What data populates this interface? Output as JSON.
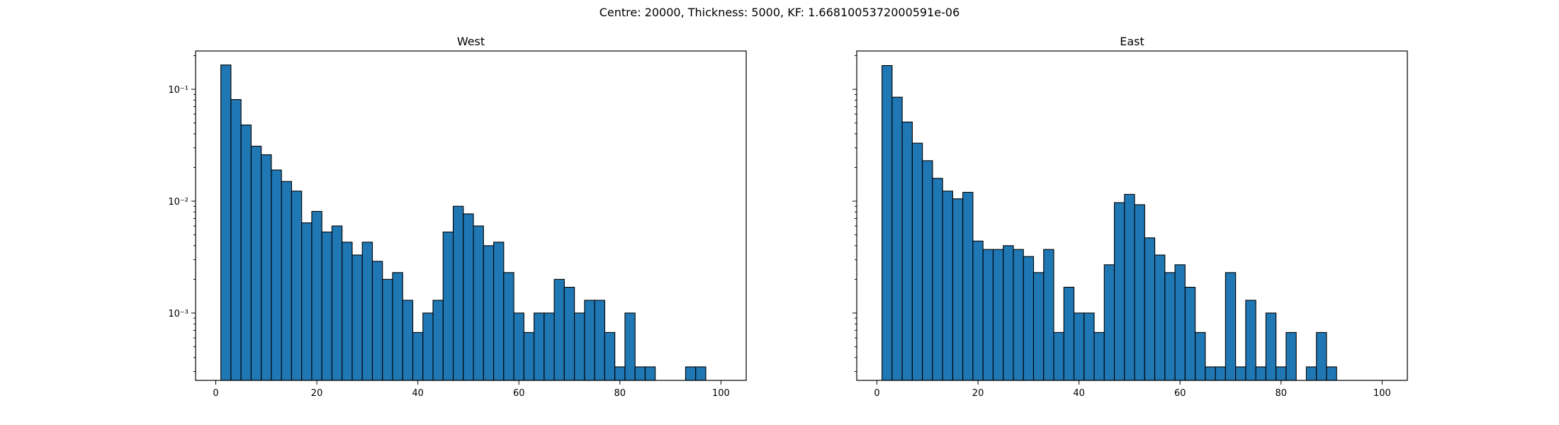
{
  "figure": {
    "suptitle": "Centre: 20000, Thickness: 5000, KF: 1.6681005372000591e-06"
  },
  "chart_data": [
    {
      "type": "bar",
      "title": "West",
      "xlabel": "",
      "ylabel": "",
      "yscale": "log",
      "bar_color": "#1f77b4",
      "edge_color": "#000000",
      "xlim": [
        -4,
        105
      ],
      "ylim": [
        0.00025,
        0.22
      ],
      "x_ticks": [
        0,
        20,
        40,
        60,
        80,
        100
      ],
      "y_ticks": [
        {
          "value": 0.1,
          "label": "10⁻¹"
        },
        {
          "value": 0.01,
          "label": "10⁻²"
        },
        {
          "value": 0.001,
          "label": "10⁻³"
        }
      ],
      "bin_start": 1,
      "bin_width": 2,
      "values": [
        0.165,
        0.081,
        0.048,
        0.031,
        0.026,
        0.019,
        0.015,
        0.0123,
        0.0064,
        0.0081,
        0.0053,
        0.006,
        0.0043,
        0.0033,
        0.0043,
        0.0029,
        0.002,
        0.0023,
        0.0013,
        0.00067,
        0.001,
        0.0013,
        0.0053,
        0.009,
        0.0077,
        0.006,
        0.004,
        0.0043,
        0.0023,
        0.001,
        0.00067,
        0.001,
        0.001,
        0.002,
        0.0017,
        0.001,
        0.0013,
        0.0013,
        0.00067,
        0.00033,
        0.001,
        0.00033,
        0.00033,
        0,
        0,
        0,
        0.00033,
        0.00033,
        0,
        0
      ]
    },
    {
      "type": "bar",
      "title": "East",
      "xlabel": "",
      "ylabel": "",
      "yscale": "log",
      "bar_color": "#1f77b4",
      "edge_color": "#000000",
      "xlim": [
        -4,
        105
      ],
      "ylim": [
        0.00025,
        0.22
      ],
      "x_ticks": [
        0,
        20,
        40,
        60,
        80,
        100
      ],
      "y_ticks": [
        {
          "value": 0.1,
          "label": ""
        },
        {
          "value": 0.01,
          "label": ""
        },
        {
          "value": 0.001,
          "label": ""
        }
      ],
      "bin_start": 1,
      "bin_width": 2,
      "values": [
        0.163,
        0.085,
        0.051,
        0.033,
        0.023,
        0.016,
        0.0123,
        0.0105,
        0.012,
        0.0044,
        0.0037,
        0.0037,
        0.004,
        0.0037,
        0.0032,
        0.0023,
        0.0037,
        0.00067,
        0.0017,
        0.001,
        0.001,
        0.00067,
        0.0027,
        0.0097,
        0.0115,
        0.0093,
        0.0047,
        0.0033,
        0.0023,
        0.0027,
        0.0017,
        0.00067,
        0.00033,
        0.00033,
        0.0023,
        0.00033,
        0.0013,
        0.00033,
        0.001,
        0.00033,
        0.00067,
        0,
        0.00033,
        0.00067,
        0.00033,
        0,
        0,
        0,
        0,
        0
      ]
    }
  ]
}
